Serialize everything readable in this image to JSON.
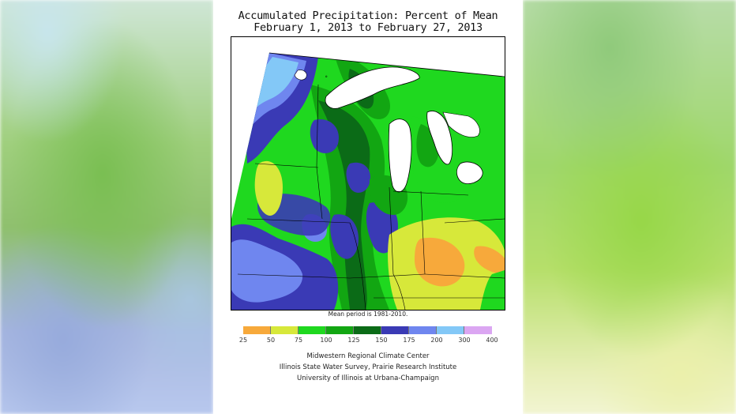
{
  "title_line1": "Accumulated Precipitation: Percent of Mean",
  "title_line2": "February 1, 2013 to February 27, 2013",
  "mean_note": "Mean period is 1981-2010.",
  "legend": {
    "colors": [
      "#f7a93b",
      "#d7e83a",
      "#1fd81f",
      "#12a612",
      "#0b6b17",
      "#3a3ab5",
      "#6f86ef",
      "#83c8f7",
      "#dba6f2"
    ],
    "ticks": [
      "25",
      "50",
      "75",
      "100",
      "125",
      "150",
      "175",
      "200",
      "300",
      "400"
    ]
  },
  "credits": [
    "Midwestern Regional Climate Center",
    "Illinois State Water Survey, Prairie Research Institute",
    "University of Illinois at Urbana-Champaign"
  ],
  "lake_label": "∘"
}
